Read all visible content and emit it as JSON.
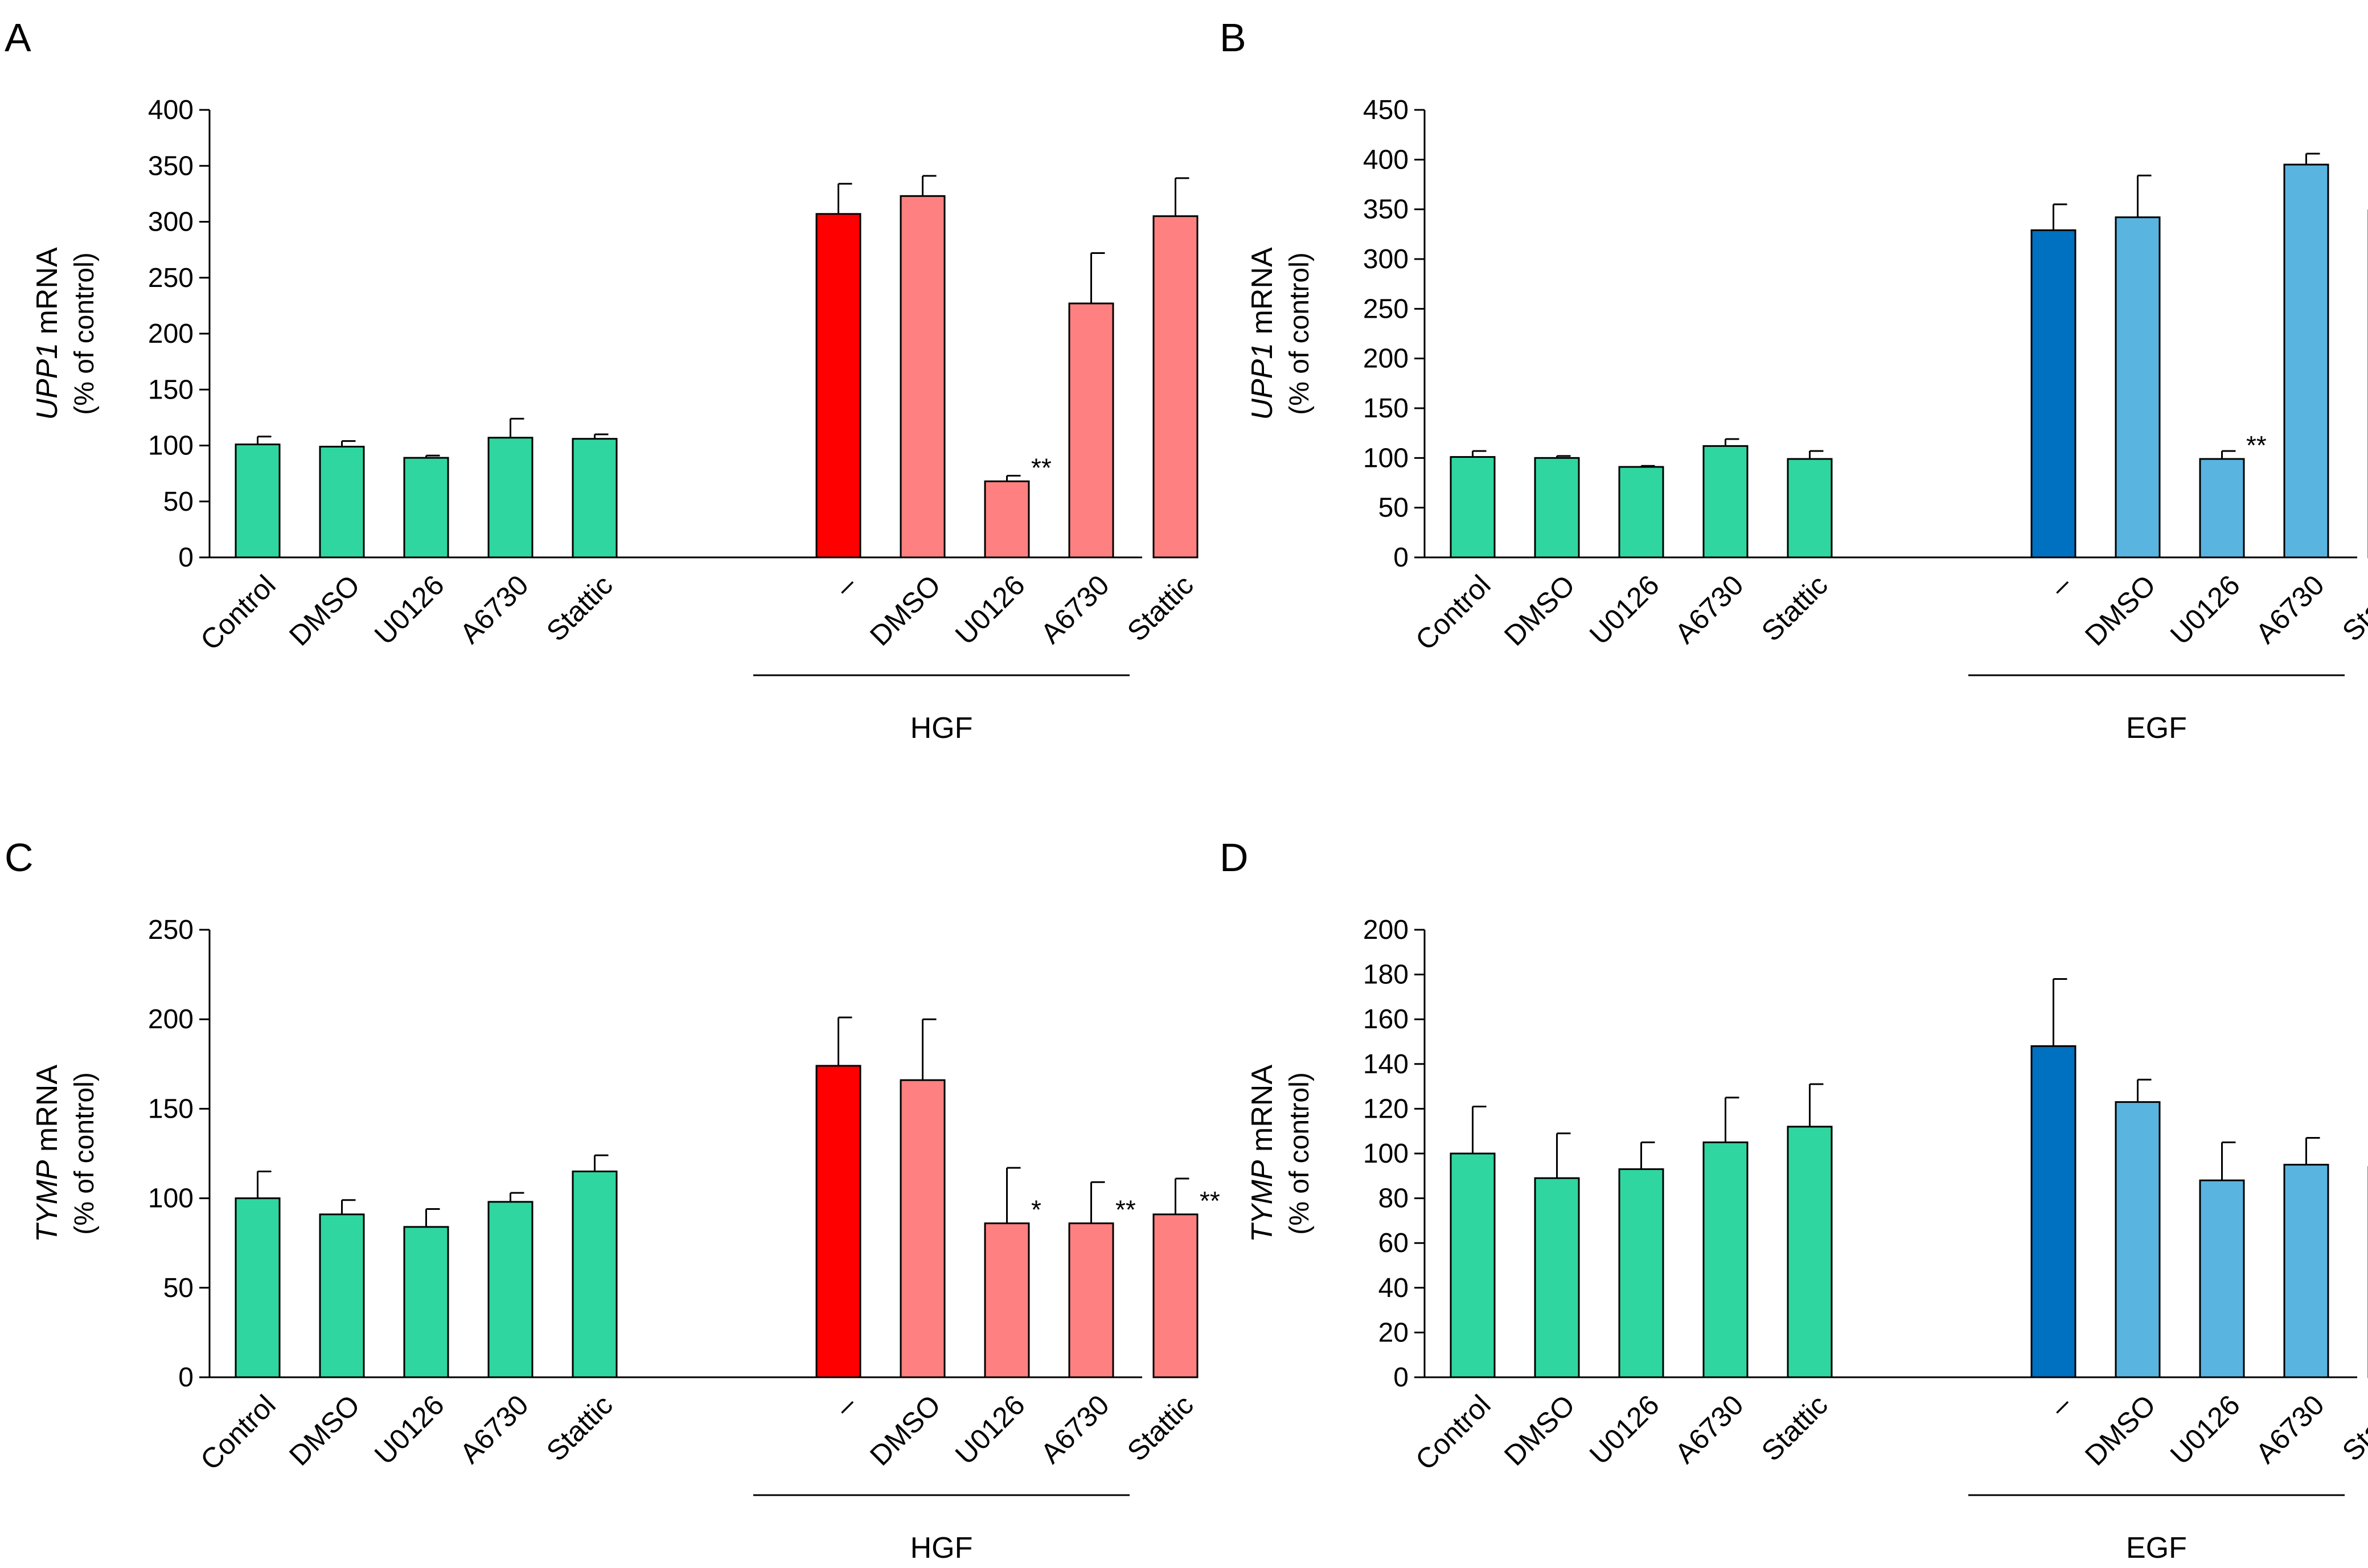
{
  "chart_data": [
    {
      "id": "A",
      "panel_label": "A",
      "type": "bar",
      "ylabel_gene": "UPP1",
      "ylabel_suffix": " mRNA",
      "ylabel_sub": "(% of control)",
      "ylim": [
        0,
        400
      ],
      "yticks": [
        0,
        50,
        100,
        150,
        200,
        250,
        300,
        350,
        400
      ],
      "group_label": "HGF",
      "categories": [
        "Control",
        "DMSO",
        "U0126",
        "A6730",
        "Stattic",
        "–",
        "DMSO",
        "U0126",
        "A6730",
        "Stattic"
      ],
      "values": [
        101,
        99,
        89,
        107,
        106,
        307,
        323,
        68,
        227,
        305
      ],
      "errors": [
        7,
        5,
        2,
        17,
        4,
        27,
        18,
        5,
        45,
        34
      ],
      "significance": [
        "",
        "",
        "",
        "",
        "",
        "",
        "",
        "**",
        "",
        ""
      ],
      "colors": [
        "#2fd6a0",
        "#2fd6a0",
        "#2fd6a0",
        "#2fd6a0",
        "#2fd6a0",
        "#ff0000",
        "#ff8080",
        "#ff8080",
        "#ff8080",
        "#ff8080"
      ]
    },
    {
      "id": "B",
      "panel_label": "B",
      "type": "bar",
      "ylabel_gene": "UPP1",
      "ylabel_suffix": " mRNA",
      "ylabel_sub": "(% of control)",
      "ylim": [
        0,
        450
      ],
      "yticks": [
        0,
        50,
        100,
        150,
        200,
        250,
        300,
        350,
        400,
        450
      ],
      "group_label": "EGF",
      "categories": [
        "Control",
        "DMSO",
        "U0126",
        "A6730",
        "Stattic",
        "–",
        "DMSO",
        "U0126",
        "A6730",
        "Stattic"
      ],
      "values": [
        101,
        100,
        91,
        112,
        99,
        329,
        342,
        99,
        395,
        349
      ],
      "errors": [
        6,
        2,
        1,
        7,
        8,
        26,
        42,
        8,
        11,
        16
      ],
      "significance": [
        "",
        "",
        "",
        "",
        "",
        "",
        "",
        "**",
        "",
        ""
      ],
      "colors": [
        "#2fd6a0",
        "#2fd6a0",
        "#2fd6a0",
        "#2fd6a0",
        "#2fd6a0",
        "#0070c0",
        "#5ab4e0",
        "#5ab4e0",
        "#5ab4e0",
        "#5ab4e0"
      ]
    },
    {
      "id": "C",
      "panel_label": "C",
      "type": "bar",
      "ylabel_gene": "TYMP",
      "ylabel_suffix": " mRNA",
      "ylabel_sub": "(% of control)",
      "ylim": [
        0,
        250
      ],
      "yticks": [
        0,
        50,
        100,
        150,
        200,
        250
      ],
      "group_label": "HGF",
      "categories": [
        "Control",
        "DMSO",
        "U0126",
        "A6730",
        "Stattic",
        "–",
        "DMSO",
        "U0126",
        "A6730",
        "Stattic"
      ],
      "values": [
        100,
        91,
        84,
        98,
        115,
        174,
        166,
        86,
        86,
        91
      ],
      "errors": [
        15,
        8,
        10,
        5,
        9,
        27,
        34,
        31,
        23,
        20
      ],
      "significance": [
        "",
        "",
        "",
        "",
        "",
        "",
        "",
        "*",
        "**",
        "**"
      ],
      "colors": [
        "#2fd6a0",
        "#2fd6a0",
        "#2fd6a0",
        "#2fd6a0",
        "#2fd6a0",
        "#ff0000",
        "#ff8080",
        "#ff8080",
        "#ff8080",
        "#ff8080"
      ]
    },
    {
      "id": "D",
      "panel_label": "D",
      "type": "bar",
      "ylabel_gene": "TYMP",
      "ylabel_suffix": " mRNA",
      "ylabel_sub": "(% of control)",
      "ylim": [
        0,
        200
      ],
      "yticks": [
        0,
        20,
        40,
        60,
        80,
        100,
        120,
        140,
        160,
        180,
        200
      ],
      "group_label": "EGF",
      "categories": [
        "Control",
        "DMSO",
        "U0126",
        "A6730",
        "Stattic",
        "–",
        "DMSO",
        "U0126",
        "A6730",
        "Stattic"
      ],
      "values": [
        100,
        89,
        93,
        105,
        112,
        148,
        123,
        88,
        95,
        94
      ],
      "errors": [
        21,
        20,
        12,
        20,
        19,
        30,
        10,
        17,
        12,
        4
      ],
      "significance": [
        "",
        "",
        "",
        "",
        "",
        "",
        "",
        "",
        "",
        "*"
      ],
      "colors": [
        "#2fd6a0",
        "#2fd6a0",
        "#2fd6a0",
        "#2fd6a0",
        "#2fd6a0",
        "#0070c0",
        "#5ab4e0",
        "#5ab4e0",
        "#5ab4e0",
        "#5ab4e0"
      ]
    }
  ]
}
